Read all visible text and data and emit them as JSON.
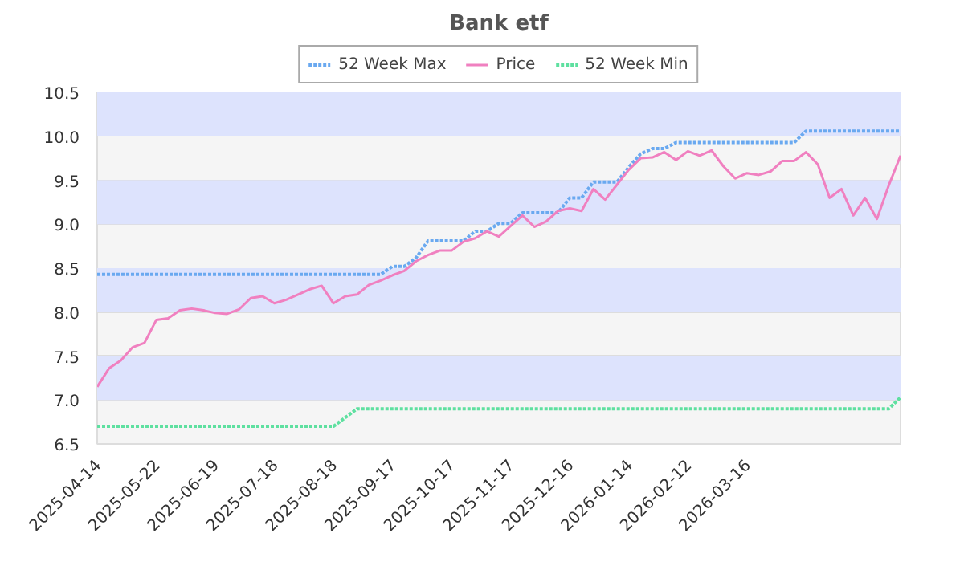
{
  "chart_data": {
    "type": "line",
    "title": "Bank etf",
    "categories": [
      "2025-04-14",
      null,
      null,
      null,
      null,
      "2025-05-22",
      null,
      null,
      null,
      null,
      "2025-06-19",
      null,
      null,
      null,
      null,
      "2025-07-18",
      null,
      null,
      null,
      null,
      "2025-08-18",
      null,
      null,
      null,
      null,
      "2025-09-17",
      null,
      null,
      null,
      null,
      "2025-10-17",
      null,
      null,
      null,
      null,
      "2025-11-17",
      null,
      null,
      null,
      null,
      "2025-12-16",
      null,
      null,
      null,
      null,
      "2026-01-14",
      null,
      null,
      null,
      null,
      "2026-02-12",
      null,
      null,
      null,
      null,
      "2026-03-16",
      null,
      null,
      null,
      null,
      null,
      null,
      null,
      null,
      null,
      null,
      null,
      null,
      null
    ],
    "series": [
      {
        "name": "52 Week Max",
        "color": "#6aa9f0",
        "line_style": "dotted",
        "values": [
          8.43,
          8.43,
          8.43,
          8.43,
          8.43,
          8.43,
          8.43,
          8.43,
          8.43,
          8.43,
          8.43,
          8.43,
          8.43,
          8.43,
          8.43,
          8.43,
          8.43,
          8.43,
          8.43,
          8.43,
          8.43,
          8.43,
          8.43,
          8.43,
          8.43,
          8.52,
          8.52,
          8.62,
          8.81,
          8.81,
          8.81,
          8.81,
          8.92,
          8.92,
          9.01,
          9.01,
          9.13,
          9.13,
          9.13,
          9.13,
          9.3,
          9.3,
          9.48,
          9.48,
          9.48,
          9.65,
          9.8,
          9.86,
          9.86,
          9.93,
          9.93,
          9.93,
          9.93,
          9.93,
          9.93,
          9.93,
          9.93,
          9.93,
          9.93,
          9.93,
          10.06,
          10.06,
          10.06,
          10.06,
          10.06,
          10.06,
          10.06,
          10.06,
          10.06
        ]
      },
      {
        "name": "Price",
        "color": "#f080c0",
        "line_style": "solid",
        "values": [
          7.15,
          7.36,
          7.45,
          7.6,
          7.65,
          7.91,
          7.93,
          8.02,
          8.04,
          8.02,
          7.99,
          7.98,
          8.03,
          8.16,
          8.18,
          8.1,
          8.14,
          8.2,
          8.26,
          8.3,
          8.1,
          8.18,
          8.2,
          8.31,
          8.36,
          8.42,
          8.47,
          8.58,
          8.65,
          8.7,
          8.7,
          8.8,
          8.84,
          8.92,
          8.86,
          8.98,
          9.1,
          8.97,
          9.03,
          9.15,
          9.18,
          9.15,
          9.4,
          9.28,
          9.45,
          9.62,
          9.75,
          9.76,
          9.82,
          9.73,
          9.83,
          9.78,
          9.84,
          9.66,
          9.52,
          9.58,
          9.56,
          9.6,
          9.72,
          9.72,
          9.82,
          9.68,
          9.3,
          9.4,
          9.1,
          9.3,
          9.06,
          9.44,
          9.78
        ]
      },
      {
        "name": "52 Week Min",
        "color": "#5ee0a0",
        "line_style": "dotted",
        "values": [
          6.7,
          6.7,
          6.7,
          6.7,
          6.7,
          6.7,
          6.7,
          6.7,
          6.7,
          6.7,
          6.7,
          6.7,
          6.7,
          6.7,
          6.7,
          6.7,
          6.7,
          6.7,
          6.7,
          6.7,
          6.7,
          6.8,
          6.9,
          6.9,
          6.9,
          6.9,
          6.9,
          6.9,
          6.9,
          6.9,
          6.9,
          6.9,
          6.9,
          6.9,
          6.9,
          6.9,
          6.9,
          6.9,
          6.9,
          6.9,
          6.9,
          6.9,
          6.9,
          6.9,
          6.9,
          6.9,
          6.9,
          6.9,
          6.9,
          6.9,
          6.9,
          6.9,
          6.9,
          6.9,
          6.9,
          6.9,
          6.9,
          6.9,
          6.9,
          6.9,
          6.9,
          6.9,
          6.9,
          6.9,
          6.9,
          6.9,
          6.9,
          6.9,
          7.03
        ]
      }
    ],
    "ylim": [
      6.5,
      10.5
    ],
    "yticks": [
      6.5,
      {
        "value": 7,
        "label": "7.0"
      },
      7.5,
      {
        "value": 8,
        "label": "8.0"
      },
      8.5,
      {
        "value": 9,
        "label": "9.0"
      },
      9.5,
      {
        "value": 10,
        "label": "10.0"
      },
      10.5
    ],
    "bands": [
      {
        "axis": "y",
        "from": 7.0,
        "to": 7.5,
        "color": "#dde3fd"
      },
      {
        "axis": "y",
        "from": 8.0,
        "to": 8.5,
        "color": "#dde3fd"
      },
      {
        "axis": "y",
        "from": 9.0,
        "to": 9.5,
        "color": "#dde3fd"
      },
      {
        "axis": "y",
        "from": 10.0,
        "to": 10.5,
        "color": "#dde3fd"
      }
    ],
    "grid": "y",
    "legend": "top"
  }
}
